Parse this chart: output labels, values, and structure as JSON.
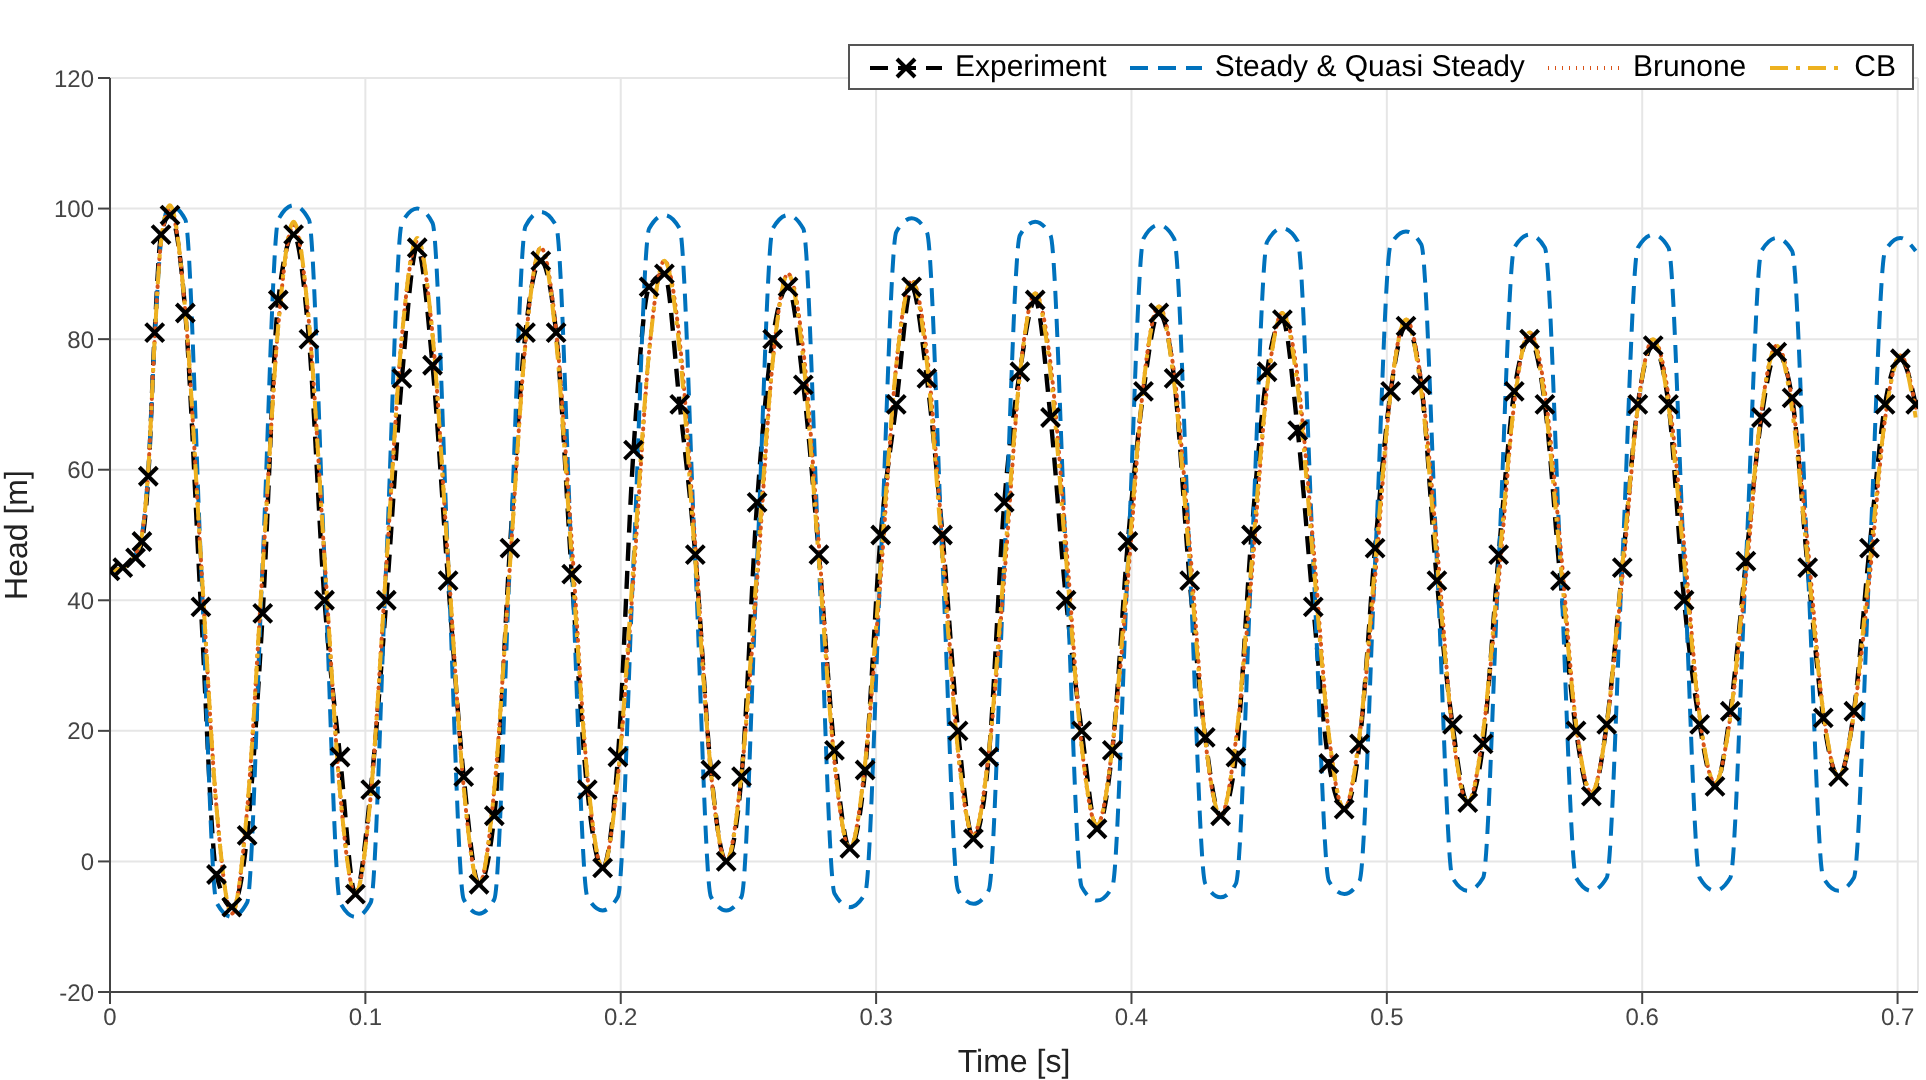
{
  "chart_data": {
    "type": "line",
    "xlabel": "Time [s]",
    "ylabel": "Head [m]",
    "xlim": [
      0,
      0.708
    ],
    "xticks": [
      0,
      0.1,
      0.2,
      0.3,
      0.4,
      0.5,
      0.6,
      0.7
    ],
    "ylim": [
      -20,
      120
    ],
    "yticks": [
      -20,
      0,
      20,
      40,
      60,
      80,
      100,
      120
    ],
    "grid": true,
    "legend": "top right",
    "x": [
      0,
      0.005,
      0.01,
      0.0125,
      0.015,
      0.0175,
      0.02,
      0.0235,
      0.0295,
      0.0356,
      0.0417,
      0.0477,
      0.0537,
      0.0598,
      0.0659,
      0.0719,
      0.0779,
      0.084,
      0.0901,
      0.0961,
      0.1021,
      0.1082,
      0.1143,
      0.1203,
      0.1263,
      0.1324,
      0.1385,
      0.1445,
      0.1505,
      0.1566,
      0.1627,
      0.1687,
      0.1747,
      0.1808,
      0.1869,
      0.1929,
      0.1989,
      0.205,
      0.2111,
      0.2171,
      0.2231,
      0.2292,
      0.2353,
      0.2413,
      0.2473,
      0.2534,
      0.2595,
      0.2655,
      0.2715,
      0.2776,
      0.2837,
      0.2897,
      0.2957,
      0.3018,
      0.3079,
      0.3139,
      0.3199,
      0.326,
      0.3321,
      0.3381,
      0.3441,
      0.3502,
      0.3563,
      0.3623,
      0.3683,
      0.3744,
      0.3805,
      0.3865,
      0.3925,
      0.3986,
      0.4047,
      0.4107,
      0.4167,
      0.4228,
      0.4289,
      0.4349,
      0.4409,
      0.447,
      0.4531,
      0.4591,
      0.4651,
      0.4712,
      0.4773,
      0.4833,
      0.4893,
      0.4954,
      0.5015,
      0.5075,
      0.5135,
      0.5196,
      0.5257,
      0.5317,
      0.5377,
      0.5438,
      0.5499,
      0.5559,
      0.5619,
      0.568,
      0.5741,
      0.5801,
      0.5861,
      0.5922,
      0.5983,
      0.6043,
      0.6103,
      0.6164,
      0.6225,
      0.6285,
      0.6345,
      0.6406,
      0.6467,
      0.6527,
      0.6587,
      0.6648,
      0.6709,
      0.6769,
      0.6829,
      0.689,
      0.6951,
      0.7011,
      0.7071
    ],
    "series": [
      {
        "name": "Experiment",
        "color": "#000000",
        "line_style": "dashed",
        "marker": "cross",
        "values": [
          44.5,
          45,
          46.5,
          49,
          59,
          81,
          96,
          99,
          84,
          39,
          -2,
          -7,
          4,
          38,
          86,
          96,
          80,
          40,
          16,
          -5,
          11,
          40,
          74,
          94,
          76,
          43,
          13,
          -3.5,
          7,
          48,
          81,
          92,
          81,
          44,
          11,
          -1,
          16,
          63,
          88,
          90,
          70,
          47,
          14,
          0,
          13,
          55,
          80,
          88,
          73,
          47,
          17,
          2,
          14,
          50,
          70,
          88,
          74,
          50,
          20,
          3.5,
          16,
          55,
          75,
          86,
          68,
          40,
          20,
          5,
          17,
          49,
          72,
          84,
          74,
          43,
          19,
          7,
          16,
          50,
          75,
          83,
          66,
          39,
          15,
          8,
          18,
          48,
          72,
          82,
          73,
          43,
          21,
          9,
          18,
          47,
          72,
          80,
          70,
          43,
          20,
          10,
          21,
          45,
          70,
          79,
          70,
          40,
          21,
          11.5,
          23,
          46,
          68,
          78,
          71,
          45,
          22,
          13,
          23,
          48,
          70,
          77,
          70
        ]
      },
      {
        "name": "Steady & Quasi Steady",
        "color": "#0072bd",
        "line_style": "dashed",
        "marker": "none",
        "values": [
          44.5,
          45,
          47,
          50,
          60,
          80,
          95,
          100.5,
          98.3,
          46,
          -6.3,
          -8.5,
          -6.3,
          46,
          98.3,
          100.5,
          98.3,
          46,
          -6.3,
          -8.5,
          -6.3,
          45.8,
          97.8,
          100,
          97.8,
          46,
          -5.8,
          -8,
          -5.8,
          45.8,
          97.3,
          99.5,
          97.4,
          46,
          -5.4,
          -7.5,
          -5.4,
          45.8,
          96.9,
          99,
          96.9,
          45.8,
          -5.4,
          -7.5,
          -5.4,
          45.8,
          96.9,
          99,
          96.9,
          46,
          -4.9,
          -7,
          -4.9,
          45.8,
          96.4,
          98.5,
          96.4,
          46,
          -4.4,
          -6.5,
          -4.4,
          45.8,
          95.9,
          98,
          95.9,
          46,
          -3.9,
          -6,
          -3.9,
          45.8,
          95.4,
          97.5,
          95.4,
          46,
          -3.4,
          -5.5,
          -3.4,
          45.8,
          94.9,
          97,
          95,
          46,
          -3,
          -5,
          -3,
          45.8,
          94.5,
          96.5,
          94.5,
          46,
          -2.5,
          -4.5,
          -2.5,
          45.8,
          94,
          96,
          94,
          45.8,
          -2.5,
          -4.5,
          -2.5,
          45.8,
          94,
          96,
          94,
          45.8,
          -2.5,
          -4.5,
          -2.5,
          45.5,
          93.5,
          95.5,
          93.5,
          45.5,
          -2.5,
          -4.5,
          -2.5,
          45.5,
          93.5,
          95.5,
          93.5
        ]
      },
      {
        "name": "Brunone",
        "color": "#d95319",
        "line_style": "dotted",
        "marker": "none",
        "values": [
          44.5,
          45,
          47,
          50,
          60,
          80,
          95,
          100,
          84.2,
          46.3,
          8.3,
          -8,
          7.9,
          45,
          82.1,
          97.5,
          82.6,
          46.5,
          10.5,
          -5,
          10.1,
          45.3,
          80.4,
          95,
          80.7,
          46,
          11.4,
          -3.5,
          11.1,
          45.3,
          79.4,
          94,
          81.3,
          49,
          13.3,
          -1,
          13,
          43.5,
          78,
          92,
          79.7,
          48.5,
          13.8,
          0,
          13.5,
          43,
          76.5,
          90,
          78.3,
          48.5,
          15.2,
          2,
          15,
          43.5,
          76,
          89,
          77.8,
          49,
          16.8,
          4,
          16.5,
          43.5,
          74.6,
          87,
          76.3,
          48.8,
          17.7,
          5.5,
          17.4,
          43.3,
          73.1,
          85,
          74.8,
          48.5,
          18.7,
          7,
          18.6,
          43.5,
          72.5,
          84,
          74.1,
          48.5,
          19.4,
          8,
          19.3,
          43.5,
          71.8,
          83,
          73.4,
          48.5,
          20.1,
          9,
          19.8,
          43,
          70.2,
          81,
          71.9,
          48.3,
          21.1,
          10.5,
          20.9,
          43.3,
          69.6,
          80,
          71.3,
          48.5,
          22.2,
          12,
          22.1,
          43.5,
          69,
          79,
          70.6,
          48.5,
          22.9,
          13,
          22.7,
          43.3,
          67.8,
          77.5,
          69.5
        ]
      },
      {
        "name": "CB",
        "color": "#edb120",
        "line_style": "dashdot",
        "marker": "none",
        "values": [
          44.5,
          45,
          47,
          50,
          60,
          80,
          95,
          100.5,
          84.2,
          46.3,
          8.3,
          -8,
          7.9,
          45,
          82.1,
          98,
          82.6,
          46.5,
          10.5,
          -5,
          10.1,
          45.3,
          80.4,
          95.5,
          80.7,
          46,
          11.4,
          -3.5,
          11.1,
          45.3,
          79.4,
          94,
          79.8,
          46.5,
          13.3,
          -1,
          13,
          45.5,
          78,
          92,
          78.2,
          46,
          13.8,
          0,
          13.5,
          45,
          76.5,
          90,
          76.8,
          46,
          15.2,
          2,
          15,
          45.5,
          76,
          89,
          76.3,
          46.5,
          16.8,
          4,
          16.5,
          45.5,
          74.6,
          87,
          74.8,
          46.3,
          17.7,
          5.5,
          17.4,
          45.3,
          73.1,
          85,
          73.3,
          46,
          18.7,
          7,
          18.6,
          45.5,
          72.5,
          84,
          72.6,
          46,
          19.4,
          8,
          19.3,
          45.5,
          71.8,
          83,
          71.9,
          46,
          20.1,
          9,
          19.8,
          45,
          70.2,
          81,
          70.4,
          45.8,
          21.1,
          10.5,
          20.9,
          45.3,
          69.6,
          80,
          69.8,
          46,
          22.2,
          12,
          22.1,
          45.5,
          69,
          79,
          69.1,
          46,
          22.9,
          13,
          22.7,
          45.3,
          67.8,
          77.5,
          68
        ]
      }
    ]
  }
}
